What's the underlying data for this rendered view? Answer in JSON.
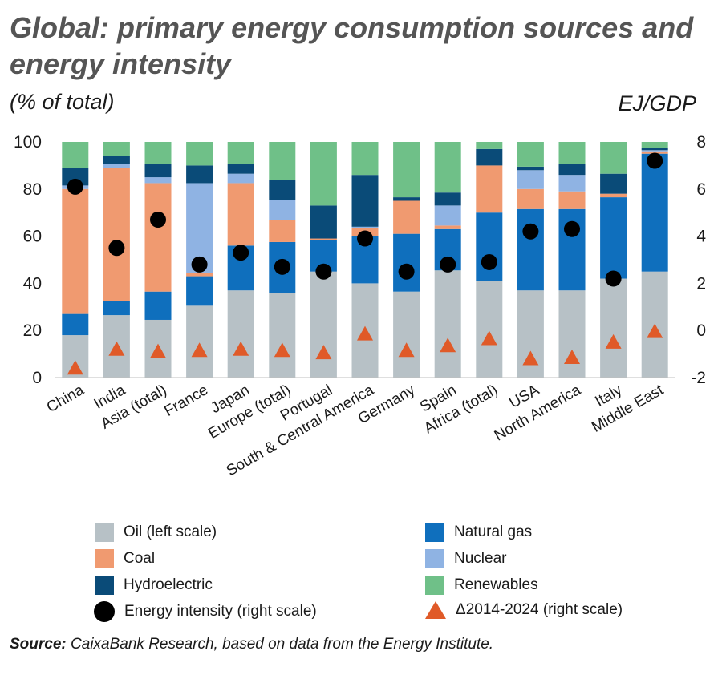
{
  "header": {
    "title": "Global: primary energy consumption sources and energy intensity",
    "left_unit": "(% of total)",
    "right_unit": "EJ/GDP"
  },
  "source": {
    "label": "Source:",
    "text": "CaixaBank Research, based on data from the Energy Institute."
  },
  "colors": {
    "oil": "#b7c1c6",
    "natural_gas": "#0f6fbd",
    "coal": "#f09a70",
    "nuclear": "#8fb3e3",
    "hydroelectric": "#0a4b78",
    "renewables": "#6fc088",
    "intensity": "#000000",
    "delta": "#e05a28"
  },
  "chart_data": {
    "type": "bar",
    "stacked": true,
    "categories": [
      "China",
      "India",
      "Asia (total)",
      "France",
      "Japan",
      "Europe (total)",
      "Portugal",
      "South & Central America",
      "Germany",
      "Spain",
      "Africa (total)",
      "USA",
      "North America",
      "Italy",
      "Middle East"
    ],
    "series": [
      {
        "name": "Oil (left scale)",
        "key": "oil",
        "values": [
          18,
          26.5,
          24.5,
          30.5,
          37,
          36,
          45,
          40,
          36.5,
          45.5,
          41,
          37,
          37,
          42,
          45
        ]
      },
      {
        "name": "Natural gas",
        "key": "natural_gas",
        "values": [
          9,
          6,
          12,
          12.5,
          19,
          21.5,
          13.5,
          20,
          24.5,
          17.5,
          29,
          34.5,
          34.5,
          34.5,
          50
        ]
      },
      {
        "name": "Coal",
        "key": "coal",
        "values": [
          53,
          56.5,
          46,
          1.5,
          26.5,
          9.5,
          0.5,
          3.5,
          14,
          1.5,
          20,
          8.5,
          7.5,
          1.5,
          1
        ]
      },
      {
        "name": "Nuclear",
        "key": "nuclear",
        "values": [
          1.5,
          1.5,
          2.5,
          38,
          4,
          8.5,
          0,
          0.5,
          0,
          8.5,
          0,
          8,
          7,
          0,
          0.5
        ]
      },
      {
        "name": "Hydroelectric",
        "key": "hydroelectric",
        "values": [
          7.5,
          3.5,
          5.5,
          7.5,
          4,
          8.5,
          14,
          22,
          1.5,
          5.5,
          7,
          1.5,
          4.5,
          8.5,
          1
        ]
      },
      {
        "name": "Renewables",
        "key": "renewables",
        "values": [
          11,
          6,
          9.5,
          10,
          9.5,
          16,
          27,
          14,
          23.5,
          21.5,
          3,
          10.5,
          9.5,
          13.5,
          2.5
        ]
      }
    ],
    "points": [
      {
        "name": "Energy intensity (right scale)",
        "key": "intensity",
        "marker": "circle",
        "values": [
          6.1,
          3.5,
          4.7,
          2.8,
          3.3,
          2.7,
          2.5,
          3.9,
          2.5,
          2.8,
          2.9,
          4.2,
          4.3,
          2.2,
          7.2
        ]
      },
      {
        "name": "Δ2014-2024 (right scale)",
        "key": "delta",
        "marker": "triangle",
        "values": [
          -1.6,
          -0.8,
          -0.9,
          -0.85,
          -0.8,
          -0.85,
          -0.95,
          -0.15,
          -0.85,
          -0.65,
          -0.35,
          -1.2,
          -1.15,
          -0.5,
          -0.05
        ]
      }
    ],
    "left_axis": {
      "ylim": [
        0,
        100
      ],
      "ticks": [
        "0",
        "20",
        "40",
        "60",
        "80",
        "100"
      ]
    },
    "right_axis": {
      "ylim": [
        -2,
        8
      ],
      "ticks": [
        "-2",
        "0",
        "2",
        "4",
        "6",
        "8"
      ]
    },
    "legend_position": "bottom"
  }
}
